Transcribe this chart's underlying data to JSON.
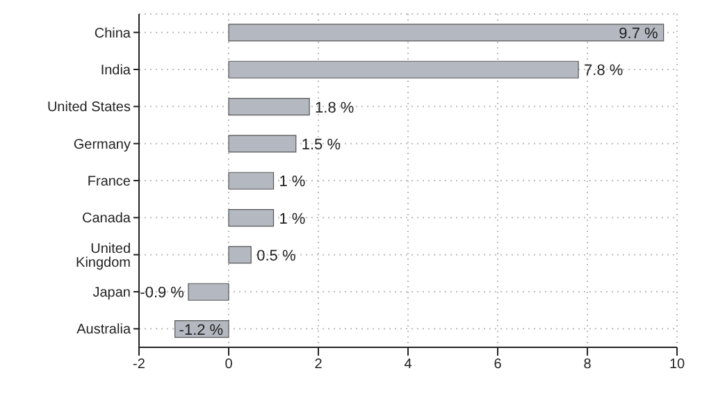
{
  "chart_data": {
    "type": "bar",
    "orientation": "horizontal",
    "categories": [
      "China",
      "India",
      "United States",
      "Germany",
      "France",
      "Canada",
      "United Kingdom",
      "Japan",
      "Australia"
    ],
    "values": [
      9.7,
      7.8,
      1.8,
      1.5,
      1,
      1,
      0.5,
      -0.9,
      -1.2
    ],
    "value_labels": [
      "9.7 %",
      "7.8 %",
      "1.8 %",
      "1.5 %",
      "1 %",
      "1 %",
      "0.5 %",
      "-0.9 %",
      "-1.2 %"
    ],
    "color": "#b4b8c0",
    "xlim": [
      -2,
      10
    ],
    "xticks": [
      -2,
      0,
      2,
      4,
      6,
      8,
      10
    ],
    "grid": true
  }
}
